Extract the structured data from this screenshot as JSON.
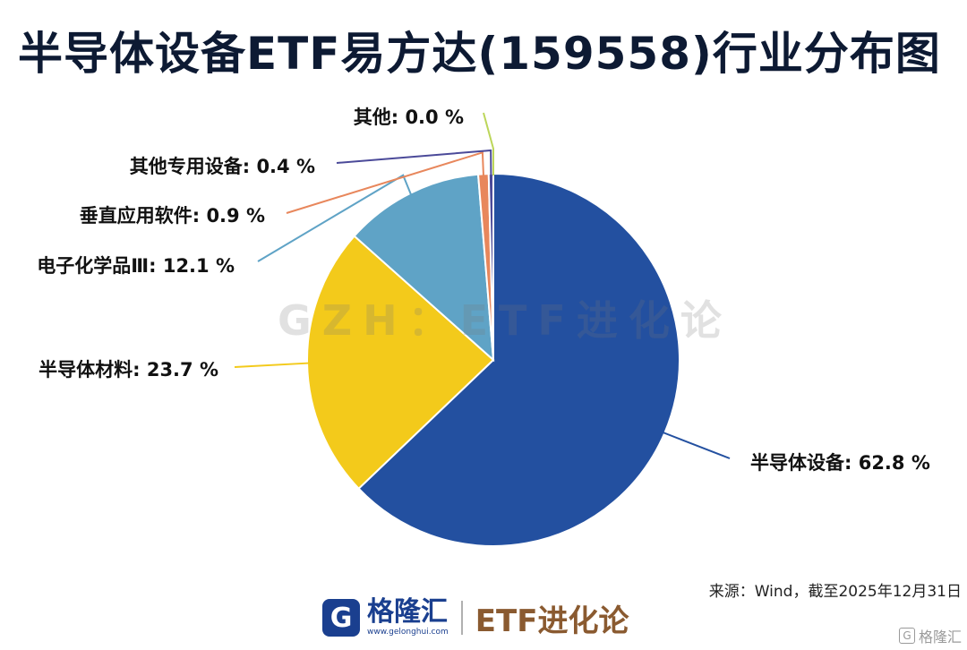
{
  "title": "半导体设备ETF易方达(159558)行业分布图",
  "watermark": "GZH：ETF进化论",
  "source": "来源：Wind，截至2025年12月31日",
  "footer": {
    "logo_glyph": "G",
    "brand_name": "格隆汇",
    "brand_url": "www.gelonghui.com",
    "etf_text": "ETF进化论"
  },
  "corner_mark": {
    "icon": "G",
    "text": "格隆汇"
  },
  "chart_data": {
    "type": "pie",
    "title": "半导体设备ETF易方达(159558)行业分布图",
    "slices": [
      {
        "name": "半导体设备",
        "value": 62.8,
        "label": "半导体设备: 62.8 %",
        "color": "#2350a0"
      },
      {
        "name": "半导体材料",
        "value": 23.7,
        "label": "半导体材料: 23.7 %",
        "color": "#f3ca1b"
      },
      {
        "name": "电子化学品Ⅲ",
        "value": 12.1,
        "label": "电子化学品Ⅲ: 12.1 %",
        "color": "#5fa3c6"
      },
      {
        "name": "垂直应用软件",
        "value": 0.9,
        "label": "垂直应用软件: 0.9 %",
        "color": "#e8875c"
      },
      {
        "name": "其他专用设备",
        "value": 0.4,
        "label": "其他专用设备: 0.4 %",
        "color": "#4b4a99"
      },
      {
        "name": "其他",
        "value": 0.0,
        "label": "其他: 0.0 %",
        "color": "#bcd65a"
      }
    ],
    "start": "12 o'clock",
    "direction": "clockwise",
    "legend": "none"
  }
}
